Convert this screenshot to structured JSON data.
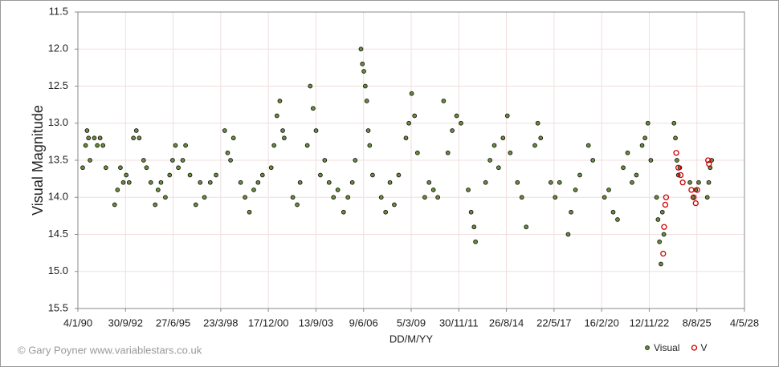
{
  "chart_data": {
    "type": "scatter",
    "y_label": "Visual Magnitude",
    "x_label": "DD/M/YY",
    "credit": "© Gary Poyner www.variablestars.co.uk",
    "xlim": [
      "1990-01-04",
      "2028-05-04"
    ],
    "xticks": [
      {
        "value": "1990-01-04",
        "label": "4/1/90"
      },
      {
        "value": "1992-09-30",
        "label": "30/9/92"
      },
      {
        "value": "1995-06-27",
        "label": "27/6/95"
      },
      {
        "value": "1998-03-23",
        "label": "23/3/98"
      },
      {
        "value": "2000-12-17",
        "label": "17/12/00"
      },
      {
        "value": "2003-09-13",
        "label": "13/9/03"
      },
      {
        "value": "2006-06-09",
        "label": "9/6/06"
      },
      {
        "value": "2009-03-05",
        "label": "5/3/09"
      },
      {
        "value": "2011-11-30",
        "label": "30/11/11"
      },
      {
        "value": "2014-08-26",
        "label": "26/8/14"
      },
      {
        "value": "2017-05-22",
        "label": "22/5/17"
      },
      {
        "value": "2020-02-16",
        "label": "16/2/20"
      },
      {
        "value": "2022-11-12",
        "label": "12/11/22"
      },
      {
        "value": "2025-08-08",
        "label": "8/8/25"
      },
      {
        "value": "2028-05-04",
        "label": "4/5/28"
      }
    ],
    "ylim": [
      15.5,
      11.5
    ],
    "yticks": [
      11.5,
      {
        "value": 12,
        "label": "12.0"
      },
      12.5,
      {
        "value": 13,
        "label": "13.0"
      },
      13.5,
      {
        "value": 14,
        "label": "14.0"
      },
      14.5,
      {
        "value": 15,
        "label": "15.0"
      },
      15.5
    ],
    "grid": true,
    "legend": "bottom-right",
    "series": [
      {
        "name": "Visual",
        "color": "#6b8e3a",
        "hollow": false,
        "x": [
          "1990-04-15",
          "1990-06-15",
          "1990-07-15",
          "1990-08-15",
          "1990-09-15",
          "1990-12-15",
          "1991-02-15",
          "1991-04-15",
          "1991-06-15",
          "1991-08-15",
          "1992-02-15",
          "1992-04-15",
          "1992-06-15",
          "1992-08-15",
          "1992-10-15",
          "1992-12-15",
          "1993-03-15",
          "1993-05-15",
          "1993-07-15",
          "1993-10-15",
          "1993-12-15",
          "1994-03-15",
          "1994-06-15",
          "1994-08-15",
          "1994-10-15",
          "1995-01-15",
          "1995-04-15",
          "1995-06-15",
          "1995-08-15",
          "1995-10-15",
          "1996-01-15",
          "1996-03-15",
          "1996-06-15",
          "1996-10-15",
          "1997-01-15",
          "1997-04-15",
          "1997-08-15",
          "1997-12-15",
          "1998-06-15",
          "1998-08-15",
          "1998-10-15",
          "1998-12-15",
          "1999-05-15",
          "1999-08-15",
          "1999-11-15",
          "2000-02-15",
          "2000-05-15",
          "2000-08-15",
          "2001-02-15",
          "2001-04-15",
          "2001-06-15",
          "2001-08-15",
          "2001-10-15",
          "2001-11-15",
          "2002-05-15",
          "2002-08-15",
          "2002-10-15",
          "2003-03-15",
          "2003-05-15",
          "2003-07-15",
          "2003-09-15",
          "2003-12-15",
          "2004-03-15",
          "2004-06-15",
          "2004-09-15",
          "2004-12-15",
          "2005-04-15",
          "2005-07-15",
          "2005-10-15",
          "2005-12-15",
          "2006-04-15",
          "2006-05-15",
          "2006-06-15",
          "2006-07-15",
          "2006-08-15",
          "2006-09-15",
          "2006-10-15",
          "2006-12-15",
          "2007-06-15",
          "2007-09-15",
          "2007-12-15",
          "2008-03-15",
          "2008-06-15",
          "2008-11-15",
          "2009-01-15",
          "2009-03-15",
          "2009-05-15",
          "2009-07-15",
          "2009-12-15",
          "2010-03-15",
          "2010-06-15",
          "2010-09-15",
          "2011-01-15",
          "2011-04-15",
          "2011-07-15",
          "2011-10-15",
          "2012-01-15",
          "2012-06-15",
          "2012-08-15",
          "2012-10-15",
          "2012-11-15",
          "2013-06-15",
          "2013-09-15",
          "2013-12-15",
          "2014-03-15",
          "2014-06-15",
          "2014-09-15",
          "2014-11-15",
          "2015-04-15",
          "2015-07-15",
          "2015-10-15",
          "2016-04-15",
          "2016-06-15",
          "2016-08-15",
          "2017-03-15",
          "2017-06-15",
          "2017-09-15",
          "2018-03-15",
          "2018-05-15",
          "2018-08-15",
          "2018-11-15",
          "2019-05-15",
          "2019-08-15",
          "2020-04-15",
          "2020-07-15",
          "2020-10-15",
          "2021-01-15",
          "2021-05-15",
          "2021-08-15",
          "2021-11-15",
          "2022-02-15",
          "2022-06-15",
          "2022-08-15",
          "2022-10-15",
          "2022-12-15",
          "2023-04-15",
          "2023-05-15",
          "2023-06-15",
          "2023-07-15",
          "2023-08-15",
          "2023-09-15",
          "2024-04-15",
          "2024-05-15",
          "2024-06-15",
          "2024-07-15",
          "2024-08-15",
          "2025-03-15",
          "2025-05-15",
          "2025-07-15",
          "2025-09-15",
          "2026-03-15",
          "2026-04-15",
          "2026-05-15",
          "2026-06-15"
        ],
        "values": [
          13.6,
          13.3,
          13.1,
          13.2,
          13.5,
          13.2,
          13.3,
          13.2,
          13.3,
          13.6,
          14.1,
          13.9,
          13.6,
          13.8,
          13.7,
          13.8,
          13.2,
          13.1,
          13.2,
          13.5,
          13.6,
          13.8,
          14.1,
          13.9,
          13.8,
          14.0,
          13.7,
          13.5,
          13.3,
          13.6,
          13.5,
          13.3,
          13.7,
          14.1,
          13.8,
          14.0,
          13.8,
          13.7,
          13.1,
          13.4,
          13.5,
          13.2,
          13.8,
          14.0,
          14.2,
          13.9,
          13.8,
          13.7,
          13.6,
          13.3,
          12.9,
          12.7,
          13.1,
          13.2,
          14.0,
          14.1,
          13.8,
          13.3,
          12.5,
          12.8,
          13.1,
          13.7,
          13.5,
          13.8,
          14.0,
          13.9,
          14.2,
          14.0,
          13.8,
          13.5,
          12.0,
          12.2,
          12.3,
          12.5,
          12.7,
          13.1,
          13.3,
          13.7,
          14.0,
          14.2,
          13.8,
          14.1,
          13.7,
          13.2,
          13.0,
          12.6,
          12.9,
          13.4,
          14.0,
          13.8,
          13.9,
          14.0,
          12.7,
          13.4,
          13.1,
          12.9,
          13.0,
          13.9,
          14.2,
          14.4,
          14.6,
          13.8,
          13.5,
          13.3,
          13.6,
          13.2,
          12.9,
          13.4,
          13.8,
          14.0,
          14.4,
          13.3,
          13.0,
          13.2,
          13.8,
          14.0,
          13.8,
          14.5,
          14.2,
          13.9,
          13.7,
          13.3,
          13.5,
          14.0,
          13.9,
          14.2,
          14.3,
          13.6,
          13.4,
          13.8,
          13.7,
          13.3,
          13.2,
          13.0,
          13.5,
          14.0,
          14.3,
          14.6,
          14.9,
          14.2,
          14.5,
          13.0,
          13.2,
          13.5,
          13.7,
          13.6,
          13.8,
          14.0,
          13.9,
          13.8,
          14.0,
          13.8,
          13.6,
          13.5
        ]
      },
      {
        "name": "V",
        "color": "#cc0000",
        "hollow": true,
        "x": [
          "2023-09-01",
          "2023-09-20",
          "2023-10-15",
          "2023-11-01",
          "2024-06-01",
          "2024-07-15",
          "2024-09-01",
          "2024-10-15",
          "2025-04-15",
          "2025-06-01",
          "2025-07-15",
          "2025-08-15",
          "2026-04-01",
          "2026-04-20"
        ],
        "values": [
          14.76,
          14.4,
          14.1,
          14.0,
          13.4,
          13.6,
          13.7,
          13.8,
          13.9,
          14.0,
          14.08,
          13.9,
          13.5,
          13.55
        ]
      }
    ]
  }
}
